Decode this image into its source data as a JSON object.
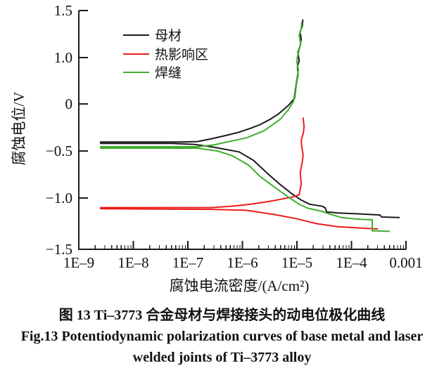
{
  "caption": {
    "line1": "图 13    Ti–3773 合金母材与焊接接头的动电位极化曲线",
    "line2": "Fig.13    Potentiodynamic polarization curves of base metal and laser",
    "line3": "welded joints of Ti–3773 alloy"
  },
  "chart_data": {
    "type": "line",
    "title": "",
    "xlabel": "腐蚀电流密度/(A/cm²)",
    "ylabel": "腐蚀电位/V",
    "x_scale": "log",
    "x_ticks": [
      "1E–9",
      "1E–8",
      "1E–7",
      "1E–6",
      "1E–5",
      "1E–4",
      "0.001"
    ],
    "x_tick_values": [
      1e-09,
      1e-08,
      1e-07,
      1e-06,
      1e-05,
      0.0001,
      0.001
    ],
    "y_ticks": [
      "1.5",
      "1.0",
      "0",
      "−0.5",
      "−1.0",
      "−1.5"
    ],
    "y_tick_values": [
      1.5,
      1.0,
      0,
      -0.5,
      -1.0,
      -1.5
    ],
    "xlim": [
      1e-09,
      0.001
    ],
    "ylim": [
      -1.5,
      1.5
    ],
    "grid": false,
    "legend_position": "upper-left-inside",
    "legend": [
      {
        "label": "母材",
        "color": "#1a1a1a"
      },
      {
        "label": "热影响区",
        "color": "#ec1c1c"
      },
      {
        "label": "焊缝",
        "color": "#3fae2d"
      }
    ],
    "series": [
      {
        "name": "母材-anodic",
        "sample": "母材",
        "color": "#1a1a1a",
        "points": [
          [
            2.5e-09,
            -0.405
          ],
          [
            6e-08,
            -0.405
          ],
          [
            1.5e-07,
            -0.4
          ],
          [
            2.7e-07,
            -0.37
          ],
          [
            5e-07,
            -0.335
          ],
          [
            8.7e-07,
            -0.3
          ],
          [
            1.4e-06,
            -0.26
          ],
          [
            2.1e-06,
            -0.22
          ],
          [
            3.2e-06,
            -0.165
          ],
          [
            4.5e-06,
            -0.11
          ],
          [
            7e-06,
            -0.015
          ],
          [
            9e-06,
            0.12
          ],
          [
            9.7e-06,
            0.42
          ],
          [
            1.05e-05,
            0.65
          ],
          [
            1.02e-05,
            0.8
          ],
          [
            1.1e-05,
            0.93
          ],
          [
            1.04e-05,
            1.05
          ],
          [
            1.15e-05,
            1.13
          ],
          [
            1.2e-05,
            1.2
          ],
          [
            1.14e-05,
            1.27
          ],
          [
            1.25e-05,
            1.33
          ],
          [
            1.28e-05,
            1.4
          ]
        ]
      },
      {
        "name": "母材-cathodic",
        "sample": "母材",
        "color": "#1a1a1a",
        "points": [
          [
            2.5e-09,
            -0.42
          ],
          [
            5.2e-08,
            -0.42
          ],
          [
            1.3e-07,
            -0.43
          ],
          [
            2.7e-07,
            -0.455
          ],
          [
            8.7e-07,
            -0.51
          ],
          [
            1.6e-06,
            -0.6
          ],
          [
            2.9e-06,
            -0.74
          ],
          [
            5e-06,
            -0.86
          ],
          [
            8.1e-06,
            -0.955
          ],
          [
            1.2e-05,
            -1.02
          ],
          [
            1.7e-05,
            -1.06
          ],
          [
            2.9e-05,
            -1.08
          ],
          [
            3.3e-05,
            -1.095
          ],
          [
            3.5e-05,
            -1.135
          ],
          [
            5.6e-05,
            -1.145
          ],
          [
            0.00014,
            -1.155
          ],
          [
            0.00033,
            -1.165
          ],
          [
            0.00036,
            -1.185
          ],
          [
            0.00075,
            -1.19
          ]
        ]
      },
      {
        "name": "热影响区-anodic",
        "sample": "热影响区",
        "color": "#ec1c1c",
        "points": [
          [
            2.5e-09,
            -1.093
          ],
          [
            2.7e-07,
            -1.093
          ],
          [
            6e-07,
            -1.08
          ],
          [
            1.2e-06,
            -1.065
          ],
          [
            2.2e-06,
            -1.045
          ],
          [
            3.8e-06,
            -1.025
          ],
          [
            8.1e-06,
            -0.99
          ],
          [
            1.1e-05,
            -0.965
          ],
          [
            1.2e-05,
            -0.85
          ],
          [
            1.15e-05,
            -0.73
          ],
          [
            1.25e-05,
            -0.62
          ],
          [
            1.3e-05,
            -0.54
          ],
          [
            1.22e-05,
            -0.45
          ],
          [
            1.2e-05,
            -0.39
          ],
          [
            1.32e-05,
            -0.3
          ],
          [
            1.35e-05,
            -0.24
          ],
          [
            1.3e-05,
            -0.15
          ]
        ]
      },
      {
        "name": "热影响区-cathodic",
        "sample": "热影响区",
        "color": "#ec1c1c",
        "points": [
          [
            2.5e-09,
            -1.105
          ],
          [
            2.7e-07,
            -1.11
          ],
          [
            1.2e-06,
            -1.12
          ],
          [
            3.8e-06,
            -1.16
          ],
          [
            9.5e-06,
            -1.2
          ],
          [
            2.3e-05,
            -1.25
          ],
          [
            5.6e-05,
            -1.28
          ],
          [
            0.00012,
            -1.29
          ],
          [
            0.00025,
            -1.3
          ],
          [
            0.0003,
            -1.3
          ]
        ]
      },
      {
        "name": "焊缝-anodic",
        "sample": "焊缝",
        "color": "#3fae2d",
        "points": [
          [
            2.5e-09,
            -0.455
          ],
          [
            1.5e-07,
            -0.455
          ],
          [
            3e-07,
            -0.435
          ],
          [
            4.8e-07,
            -0.41
          ],
          [
            1.2e-06,
            -0.36
          ],
          [
            2.5e-06,
            -0.285
          ],
          [
            4.9e-06,
            -0.165
          ],
          [
            7e-06,
            -0.06
          ],
          [
            8.7e-06,
            0.06
          ],
          [
            9.4e-06,
            0.35
          ],
          [
            1e-05,
            0.55
          ],
          [
            1.06e-05,
            0.73
          ],
          [
            1e-05,
            0.9
          ],
          [
            1.02e-05,
            1.01
          ],
          [
            1.12e-05,
            1.1
          ],
          [
            1.16e-05,
            1.16
          ],
          [
            1.1e-05,
            1.24
          ],
          [
            1.2e-05,
            1.3
          ],
          [
            1.22e-05,
            1.37
          ]
        ]
      },
      {
        "name": "焊缝-cathodic",
        "sample": "焊缝",
        "color": "#3fae2d",
        "points": [
          [
            2.5e-09,
            -0.47
          ],
          [
            1.5e-07,
            -0.47
          ],
          [
            3.5e-07,
            -0.5
          ],
          [
            6.5e-07,
            -0.55
          ],
          [
            1.3e-06,
            -0.65
          ],
          [
            2.1e-06,
            -0.77
          ],
          [
            4e-06,
            -0.89
          ],
          [
            7e-06,
            -0.99
          ],
          [
            1.1e-05,
            -1.06
          ],
          [
            1.6e-05,
            -1.1
          ],
          [
            2.9e-05,
            -1.13
          ],
          [
            4.2e-05,
            -1.16
          ],
          [
            6.5e-05,
            -1.19
          ],
          [
            0.00012,
            -1.205
          ],
          [
            0.00019,
            -1.21
          ],
          [
            0.00024,
            -1.21
          ],
          [
            0.00024,
            -1.32
          ],
          [
            0.00029,
            -1.32
          ],
          [
            0.00049,
            -1.325
          ]
        ]
      }
    ]
  }
}
